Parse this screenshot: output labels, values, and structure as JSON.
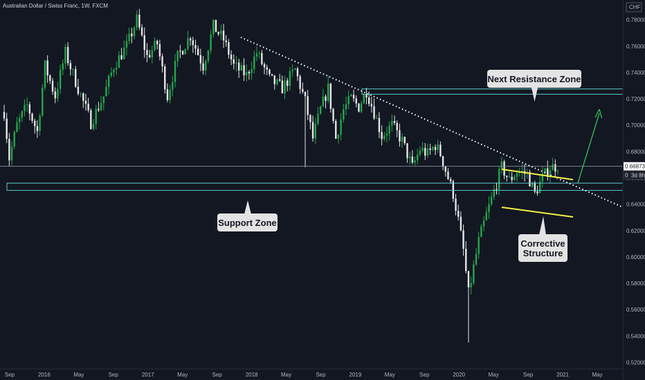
{
  "header": {
    "title": "Australian Dollar / Swiss Franc, 1W, FXCM",
    "currency": "CHF"
  },
  "colors": {
    "background": "#131722",
    "bull_candle": "#26a64a",
    "bear_candle": "#e6e6e6",
    "zone": "#5ccbd0",
    "trendline": "#ffffff",
    "structure": "#f4f143",
    "projection": "#33c45a",
    "callout_bg": "#e3e3e3"
  },
  "chart_data": {
    "type": "candlestick",
    "title": "Australian Dollar / Swiss Franc, 1W, FXCM",
    "ylabel": "CHF",
    "ylim": [
      0.515,
      0.795
    ],
    "y_ticks": [
      "0.78000",
      "0.76000",
      "0.74000",
      "0.72000",
      "0.70000",
      "0.68000",
      "0.66000",
      "0.64000",
      "0.62000",
      "0.60000",
      "0.58000",
      "0.56000",
      "0.54000",
      "0.52000"
    ],
    "x_ticks": [
      "Sep",
      "2016",
      "May",
      "Sep",
      "2017",
      "May",
      "Sep",
      "2018",
      "May",
      "Sep",
      "2019",
      "May",
      "Sep",
      "2020",
      "May",
      "Sep",
      "2021",
      "May"
    ],
    "last_price": "0.66873",
    "countdown": "3d 8h",
    "partial_price_label": "0",
    "price_path": [
      [
        0,
        0.71
      ],
      [
        2,
        0.675
      ],
      [
        5,
        0.7
      ],
      [
        9,
        0.715
      ],
      [
        13,
        0.695
      ],
      [
        16,
        0.745
      ],
      [
        20,
        0.722
      ],
      [
        24,
        0.755
      ],
      [
        29,
        0.728
      ],
      [
        34,
        0.702
      ],
      [
        39,
        0.722
      ],
      [
        43,
        0.745
      ],
      [
        48,
        0.76
      ],
      [
        52,
        0.78
      ],
      [
        56,
        0.752
      ],
      [
        60,
        0.762
      ],
      [
        64,
        0.722
      ],
      [
        68,
        0.752
      ],
      [
        73,
        0.768
      ],
      [
        78,
        0.745
      ],
      [
        82,
        0.775
      ],
      [
        86,
        0.765
      ],
      [
        90,
        0.745
      ],
      [
        95,
        0.738
      ],
      [
        99,
        0.755
      ],
      [
        104,
        0.735
      ],
      [
        109,
        0.728
      ],
      [
        114,
        0.742
      ],
      [
        118,
        0.718
      ],
      [
        121,
        0.69
      ],
      [
        124,
        0.712
      ],
      [
        127,
        0.728
      ],
      [
        130,
        0.69
      ],
      [
        133,
        0.712
      ],
      [
        136,
        0.72
      ],
      [
        139,
        0.714
      ],
      [
        142,
        0.726
      ],
      [
        145,
        0.71
      ],
      [
        148,
        0.692
      ],
      [
        152,
        0.7
      ],
      [
        156,
        0.688
      ],
      [
        160,
        0.668
      ],
      [
        163,
        0.682
      ],
      [
        166,
        0.678
      ],
      [
        169,
        0.685
      ],
      [
        171,
        0.678
      ],
      [
        174,
        0.66
      ],
      [
        176,
        0.648
      ],
      [
        178,
        0.628
      ],
      [
        180,
        0.605
      ],
      [
        182,
        0.572
      ],
      [
        184,
        0.592
      ],
      [
        186,
        0.612
      ],
      [
        189,
        0.632
      ],
      [
        192,
        0.65
      ],
      [
        195,
        0.668
      ],
      [
        198,
        0.658
      ],
      [
        201,
        0.665
      ],
      [
        205,
        0.663
      ],
      [
        208,
        0.648
      ],
      [
        211,
        0.66
      ],
      [
        214,
        0.668
      ],
      [
        217,
        0.669
      ]
    ],
    "annotations": {
      "next_resistance_zone": {
        "label": "Next Resistance Zone",
        "range": [
          0.7235,
          0.7275
        ]
      },
      "support_zone": {
        "label": "Support Zone",
        "range": [
          0.6505,
          0.656
        ]
      },
      "support_top_line": 0.6688,
      "corrective_structure": {
        "label": "Corrective Structure"
      }
    }
  }
}
